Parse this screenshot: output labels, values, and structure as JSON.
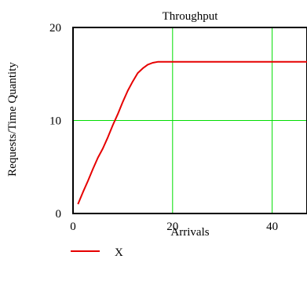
{
  "chart_data": {
    "type": "line",
    "title": "Throughput",
    "xlabel": "Arrivals",
    "ylabel": "Requests/Time Quantity",
    "xlim": [
      0,
      47
    ],
    "ylim": [
      0,
      20
    ],
    "x_ticks": [
      0,
      20,
      40
    ],
    "y_ticks": [
      0,
      10,
      20
    ],
    "x_tick_labels": [
      "0",
      "20",
      "40"
    ],
    "y_tick_labels": [
      "0",
      "10",
      "20"
    ],
    "grid": true,
    "legend_position": "bottom-left",
    "series": [
      {
        "name": "X",
        "color": "#e60000",
        "x": [
          1,
          2,
          3,
          4,
          5,
          6,
          7,
          8,
          9,
          10,
          11,
          12,
          13,
          14,
          15,
          16,
          17,
          18,
          20,
          25,
          30,
          35,
          40,
          47
        ],
        "y": [
          1.0,
          2.3,
          3.5,
          4.8,
          6.0,
          7.0,
          8.2,
          9.5,
          10.7,
          12.0,
          13.2,
          14.2,
          15.1,
          15.6,
          16.0,
          16.2,
          16.3,
          16.3,
          16.3,
          16.3,
          16.3,
          16.3,
          16.3,
          16.3
        ]
      }
    ],
    "grid_color": "#00dd00"
  }
}
